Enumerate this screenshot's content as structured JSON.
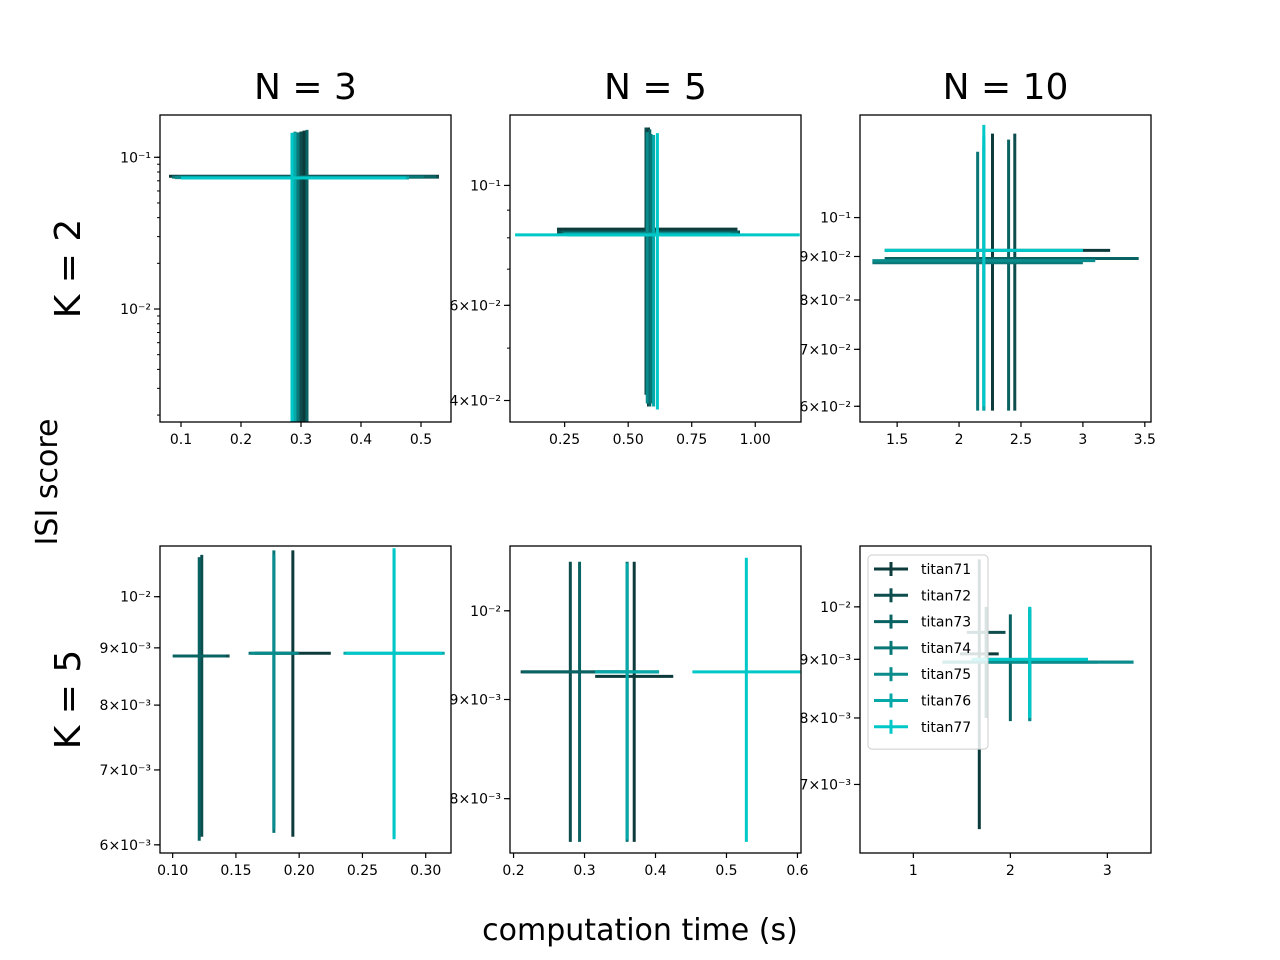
{
  "figure": {
    "xlabel": "computation time (s)",
    "ylabel": "ISI score"
  },
  "legend_series": [
    "titan71",
    "titan72",
    "titan73",
    "titan74",
    "titan75",
    "titan76",
    "titan77"
  ],
  "colors": {
    "titan71": "#0d3b3b",
    "titan72": "#0d4d4d",
    "titan73": "#0a6363",
    "titan74": "#0a7777",
    "titan75": "#0a8c8c",
    "titan76": "#06a8a8",
    "titan77": "#00c8c8"
  },
  "chart_data": [
    {
      "type": "scatter",
      "col_title": "N = 3",
      "row_label": "K = 2",
      "xlim": [
        0.065,
        0.55
      ],
      "ylim": [
        0.0018,
        0.19
      ],
      "yscale": "log",
      "xticks": [
        0.1,
        0.2,
        0.3,
        0.4,
        0.5
      ],
      "yticks": [
        {
          "v": 0.1,
          "label": "10⁻¹"
        },
        {
          "v": 0.01,
          "label": "10⁻²"
        }
      ],
      "grid": false,
      "series": [
        {
          "name": "titan71",
          "x": 0.305,
          "y": 0.075,
          "xerr": [
            0.225,
            0.225
          ],
          "yerr": [
            0.0733,
            0.075
          ]
        },
        {
          "name": "titan72",
          "x": 0.3,
          "y": 0.074,
          "xerr": [
            0.21,
            0.23
          ],
          "yerr": [
            0.0723,
            0.074
          ]
        },
        {
          "name": "titan73",
          "x": 0.31,
          "y": 0.0745,
          "xerr": [
            0.215,
            0.215
          ],
          "yerr": [
            0.0728,
            0.077
          ]
        },
        {
          "name": "titan74",
          "x": 0.295,
          "y": 0.074,
          "xerr": [
            0.21,
            0.21
          ],
          "yerr": [
            0.0722,
            0.072
          ]
        },
        {
          "name": "titan75",
          "x": 0.29,
          "y": 0.0735,
          "xerr": [
            0.2,
            0.19
          ],
          "yerr": [
            0.0718,
            0.074
          ]
        },
        {
          "name": "titan76",
          "x": 0.29,
          "y": 0.073,
          "xerr": [
            0.19,
            0.19
          ],
          "yerr": [
            0.0713,
            0.072
          ]
        },
        {
          "name": "titan77",
          "x": 0.285,
          "y": 0.073,
          "xerr": [
            0.185,
            0.19
          ],
          "yerr": [
            0.0713,
            0.072
          ]
        }
      ]
    },
    {
      "type": "scatter",
      "col_title": "N = 5",
      "row_label": "",
      "xlim": [
        0.035,
        1.18
      ],
      "ylim": [
        0.0365,
        0.135
      ],
      "yscale": "log",
      "xticks": [
        0.25,
        0.5,
        0.75,
        1.0
      ],
      "xticklabels": [
        "0.25",
        "0.50",
        "0.75",
        "1.00"
      ],
      "yticks": [
        {
          "v": 0.1,
          "label": "10⁻¹"
        },
        {
          "v": 0.06,
          "label": "6×10⁻²"
        },
        {
          "v": 0.04,
          "label": "4×10⁻²"
        }
      ],
      "grid": false,
      "series": [
        {
          "name": "titan71",
          "x": 0.58,
          "y": 0.083,
          "xerr": [
            0.36,
            0.35
          ],
          "yerr": [
            0.044,
            0.045
          ]
        },
        {
          "name": "titan72",
          "x": 0.57,
          "y": 0.082,
          "xerr": [
            0.35,
            0.37
          ],
          "yerr": [
            0.041,
            0.046
          ]
        },
        {
          "name": "titan73",
          "x": 0.585,
          "y": 0.082,
          "xerr": [
            0.35,
            0.35
          ],
          "yerr": [
            0.043,
            0.045
          ]
        },
        {
          "name": "titan74",
          "x": 0.59,
          "y": 0.0815,
          "xerr": [
            0.34,
            0.34
          ],
          "yerr": [
            0.042,
            0.043
          ]
        },
        {
          "name": "titan75",
          "x": 0.575,
          "y": 0.0815,
          "xerr": [
            0.33,
            0.33
          ],
          "yerr": [
            0.042,
            0.044
          ]
        },
        {
          "name": "titan76",
          "x": 0.6,
          "y": 0.081,
          "xerr": [
            0.34,
            0.34
          ],
          "yerr": [
            0.042,
            0.043
          ]
        },
        {
          "name": "titan77",
          "x": 0.615,
          "y": 0.081,
          "xerr": [
            0.56,
            0.56
          ],
          "yerr": [
            0.0425,
            0.044
          ]
        }
      ]
    },
    {
      "type": "scatter",
      "col_title": "N = 10",
      "row_label": "",
      "xlim": [
        1.2,
        3.55
      ],
      "ylim": [
        0.0575,
        0.132
      ],
      "yscale": "log",
      "xticks": [
        1.5,
        2.0,
        2.5,
        3.0,
        3.5
      ],
      "yticks": [
        {
          "v": 0.1,
          "label": "10⁻¹"
        },
        {
          "v": 0.09,
          "label": "9×10⁻²"
        },
        {
          "v": 0.08,
          "label": "8×10⁻²"
        },
        {
          "v": 0.07,
          "label": "7×10⁻²"
        },
        {
          "v": 0.06,
          "label": "6×10⁻²"
        }
      ],
      "grid": false,
      "series": [
        {
          "name": "titan71",
          "x": 2.27,
          "y": 0.0915,
          "xerr": [
            0.87,
            0.95
          ],
          "yerr": [
            0.0322,
            0.034
          ]
        },
        {
          "name": "titan72",
          "x": 2.45,
          "y": 0.0895,
          "xerr": [
            1.05,
            1.0
          ],
          "yerr": [
            0.0302,
            0.036
          ]
        },
        {
          "name": "titan73",
          "x": 2.4,
          "y": 0.0895,
          "xerr": [
            1.0,
            1.05
          ],
          "yerr": [
            0.0302,
            0.034
          ]
        },
        {
          "name": "titan74",
          "x": 2.15,
          "y": 0.0885,
          "xerr": [
            0.85,
            0.85
          ],
          "yerr": [
            0.0292,
            0.031
          ]
        },
        {
          "name": "titan75",
          "x": 2.2,
          "y": 0.089,
          "xerr": [
            0.9,
            0.9
          ],
          "yerr": [
            0.0297,
            0.032
          ]
        },
        {
          "name": "titan76",
          "x": 2.2,
          "y": 0.0915,
          "xerr": [
            0.8,
            0.8
          ],
          "yerr": [
            0.0322,
            0.033
          ]
        },
        {
          "name": "titan77",
          "x": 2.2,
          "y": 0.0915,
          "xerr": [
            0.8,
            0.8
          ],
          "yerr": [
            0.0315,
            0.037
          ]
        }
      ]
    },
    {
      "type": "scatter",
      "col_title": "",
      "row_label": "K = 5",
      "xlim": [
        0.09,
        0.32
      ],
      "ylim": [
        0.0059,
        0.0111
      ],
      "yscale": "log",
      "xticks": [
        0.1,
        0.15,
        0.2,
        0.25,
        0.3
      ],
      "xticklabels": [
        "0.10",
        "0.15",
        "0.20",
        "0.25",
        "0.30"
      ],
      "yticks": [
        {
          "v": 0.01,
          "label": "10⁻²"
        },
        {
          "v": 0.009,
          "label": "9×10⁻³"
        },
        {
          "v": 0.008,
          "label": "8×10⁻³"
        },
        {
          "v": 0.007,
          "label": "7×10⁻³"
        },
        {
          "v": 0.006,
          "label": "6×10⁻³"
        }
      ],
      "grid": false,
      "series": [
        {
          "name": "titan71",
          "x": 0.195,
          "y": 0.0089,
          "xerr": [
            0.03,
            0.03
          ],
          "yerr": [
            0.0028,
            0.0021
          ]
        },
        {
          "name": "titan72",
          "x": 0.123,
          "y": 0.00885,
          "xerr": [
            0.022,
            0.022
          ],
          "yerr": [
            0.00275,
            0.00205
          ]
        },
        {
          "name": "titan73",
          "x": 0.121,
          "y": 0.00885,
          "xerr": [
            0.021,
            0.021
          ],
          "yerr": [
            0.0028,
            0.002
          ]
        },
        {
          "name": "titan74",
          "x": 0.18,
          "y": 0.0089,
          "xerr": [
            0.02,
            0.02
          ],
          "yerr": [
            0.00275,
            0.0021
          ]
        },
        {
          "name": "titan75",
          "x": 0.18,
          "y": 0.0089,
          "xerr": [
            0.018,
            0.018
          ],
          "yerr": [
            0.0027,
            0.002
          ]
        },
        {
          "name": "titan76",
          "x": 0.275,
          "y": 0.0089,
          "xerr": [
            0.04,
            0.04
          ],
          "yerr": [
            0.0028,
            0.0021
          ]
        },
        {
          "name": "titan77",
          "x": 0.275,
          "y": 0.0089,
          "xerr": [
            0.038,
            0.038
          ],
          "yerr": [
            0.00283,
            0.00215
          ]
        }
      ]
    },
    {
      "type": "scatter",
      "col_title": "",
      "row_label": "",
      "xlim": [
        0.195,
        0.605
      ],
      "ylim": [
        0.0075,
        0.0108
      ],
      "yscale": "log",
      "xticks": [
        0.2,
        0.3,
        0.4,
        0.5,
        0.6
      ],
      "yticks": [
        {
          "v": 0.01,
          "label": "10⁻²"
        },
        {
          "v": 0.009,
          "label": "9×10⁻³"
        },
        {
          "v": 0.008,
          "label": "8×10⁻³"
        }
      ],
      "grid": false,
      "series": [
        {
          "name": "titan71",
          "x": 0.37,
          "y": 0.00925,
          "xerr": [
            0.055,
            0.055
          ],
          "yerr": [
            0.00165,
            0.00135
          ]
        },
        {
          "name": "titan72",
          "x": 0.28,
          "y": 0.0093,
          "xerr": [
            0.07,
            0.07
          ],
          "yerr": [
            0.0017,
            0.0013
          ]
        },
        {
          "name": "titan73",
          "x": 0.293,
          "y": 0.0093,
          "xerr": [
            0.08,
            0.08
          ],
          "yerr": [
            0.0017,
            0.0013
          ]
        },
        {
          "name": "titan74",
          "x": 0.36,
          "y": 0.0093,
          "xerr": [
            0.045,
            0.045
          ],
          "yerr": [
            0.0017,
            0.0013
          ]
        },
        {
          "name": "titan75",
          "x": 0.36,
          "y": 0.0093,
          "xerr": [
            0.045,
            0.045
          ],
          "yerr": [
            0.00168,
            0.00128
          ]
        },
        {
          "name": "titan76",
          "x": 0.36,
          "y": 0.0093,
          "xerr": [
            0.045,
            0.045
          ],
          "yerr": [
            0.00168,
            0.00128
          ]
        },
        {
          "name": "titan77",
          "x": 0.528,
          "y": 0.0093,
          "xerr": [
            0.076,
            0.076
          ],
          "yerr": [
            0.0017,
            0.00135
          ]
        }
      ]
    },
    {
      "type": "scatter",
      "col_title": "",
      "row_label": "",
      "xlim": [
        0.45,
        3.45
      ],
      "ylim": [
        0.0061,
        0.0113
      ],
      "yscale": "log",
      "xticks": [
        1,
        2,
        3
      ],
      "yticks": [
        {
          "v": 0.01,
          "label": "10⁻²"
        },
        {
          "v": 0.009,
          "label": "9×10⁻³"
        },
        {
          "v": 0.008,
          "label": "8×10⁻³"
        },
        {
          "v": 0.007,
          "label": "7×10⁻³"
        }
      ],
      "grid": false,
      "legend": "upper-left",
      "series": [
        {
          "name": "titan71",
          "x": 1.68,
          "y": 0.0091,
          "xerr": [
            0.2,
            0.2
          ],
          "yerr": [
            0.0027,
            0.0019
          ]
        },
        {
          "name": "titan72",
          "x": 1.75,
          "y": 0.0095,
          "xerr": [
            0.2,
            0.2
          ],
          "yerr": [
            0.0015,
            0.0005
          ]
        },
        {
          "name": "titan73",
          "x": 2.0,
          "y": 0.00895,
          "xerr": [
            0.7,
            0.9
          ],
          "yerr": [
            0.001,
            0.0009
          ]
        },
        {
          "name": "titan74",
          "x": 2.2,
          "y": 0.00895,
          "xerr": [
            0.9,
            1.07
          ],
          "yerr": [
            0.001,
            0.001
          ]
        },
        {
          "name": "titan75",
          "x": 2.2,
          "y": 0.00895,
          "xerr": [
            0.9,
            1.07
          ],
          "yerr": [
            0.001,
            0.001
          ]
        },
        {
          "name": "titan76",
          "x": 2.2,
          "y": 0.009,
          "xerr": [
            0.6,
            0.6
          ],
          "yerr": [
            0.001,
            0.001
          ]
        },
        {
          "name": "titan77",
          "x": 2.2,
          "y": 0.009,
          "xerr": [
            0.6,
            0.6
          ],
          "yerr": [
            0.001,
            0.001
          ]
        }
      ]
    }
  ]
}
